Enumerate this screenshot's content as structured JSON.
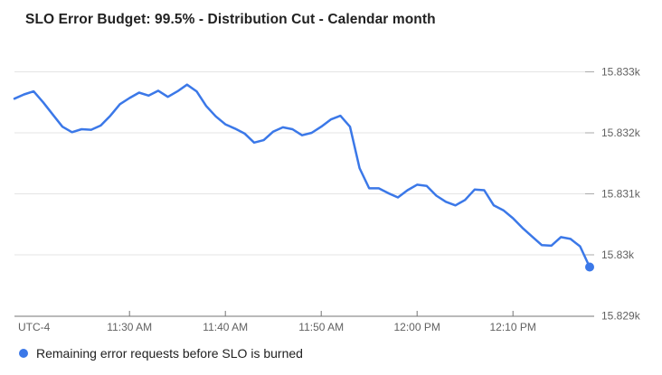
{
  "header": {
    "title": "SLO Error Budget: 99.5% - Distribution Cut - Calendar month"
  },
  "legend": {
    "label": "Remaining error requests before SLO is burned",
    "marker_color": "#3b78e8"
  },
  "axes": {
    "x": {
      "timezone_label": "UTC-4",
      "ticks": [
        {
          "label": "11:30 AM",
          "time": "11:30 AM"
        },
        {
          "label": "11:40 AM",
          "time": "11:40 AM"
        },
        {
          "label": "11:50 AM",
          "time": "11:50 AM"
        },
        {
          "label": "12:00 PM",
          "time": "12:00 PM"
        },
        {
          "label": "12:10 PM",
          "time": "12:10 PM"
        }
      ]
    },
    "y": {
      "ticks": [
        {
          "label": "15.833k",
          "value": 15833
        },
        {
          "label": "15.832k",
          "value": 15832
        },
        {
          "label": "15.831k",
          "value": 15831
        },
        {
          "label": "15.83k",
          "value": 15830
        },
        {
          "label": "15.829k",
          "value": 15829
        }
      ]
    }
  },
  "colors": {
    "line": "#3b78e8",
    "gridline": "#e4e4e4",
    "gridline_end_tick": "#aaaaaa",
    "axis_line": "#757575",
    "axis_tick": "#757575",
    "axis_label": "#616161",
    "title_text": "#212121",
    "legend_text": "#212121"
  },
  "chart_data": {
    "type": "line",
    "title": "SLO Error Budget: 99.5% - Distribution Cut - Calendar month",
    "xlabel": "UTC-4",
    "ylabel": "",
    "grid": "horizontal",
    "legend_position": "bottom-left",
    "ylim": [
      15829,
      15833.3
    ],
    "x_range": [
      "11:18 AM",
      "12:18 PM"
    ],
    "x_tick_labels": [
      "11:30 AM",
      "11:40 AM",
      "11:50 AM",
      "12:00 PM",
      "12:10 PM"
    ],
    "y_tick_labels": [
      "15.833k",
      "15.832k",
      "15.831k",
      "15.83k",
      "15.829k"
    ],
    "last_point_marker": "dot",
    "series": [
      {
        "name": "Remaining error requests before SLO is burned",
        "color": "#3b78e8",
        "points": [
          {
            "t": "11:18 AM",
            "v": 15832.56
          },
          {
            "t": "11:19 AM",
            "v": 15832.63
          },
          {
            "t": "11:20 AM",
            "v": 15832.68
          },
          {
            "t": "11:21 AM",
            "v": 15832.5
          },
          {
            "t": "11:22 AM",
            "v": 15832.3
          },
          {
            "t": "11:23 AM",
            "v": 15832.1
          },
          {
            "t": "11:24 AM",
            "v": 15832.01
          },
          {
            "t": "11:25 AM",
            "v": 15832.06
          },
          {
            "t": "11:26 AM",
            "v": 15832.05
          },
          {
            "t": "11:27 AM",
            "v": 15832.12
          },
          {
            "t": "11:28 AM",
            "v": 15832.28
          },
          {
            "t": "11:29 AM",
            "v": 15832.47
          },
          {
            "t": "11:30 AM",
            "v": 15832.57
          },
          {
            "t": "11:31 AM",
            "v": 15832.66
          },
          {
            "t": "11:32 AM",
            "v": 15832.61
          },
          {
            "t": "11:33 AM",
            "v": 15832.69
          },
          {
            "t": "11:34 AM",
            "v": 15832.59
          },
          {
            "t": "11:35 AM",
            "v": 15832.68
          },
          {
            "t": "11:36 AM",
            "v": 15832.79
          },
          {
            "t": "11:37 AM",
            "v": 15832.68
          },
          {
            "t": "11:38 AM",
            "v": 15832.44
          },
          {
            "t": "11:39 AM",
            "v": 15832.27
          },
          {
            "t": "11:40 AM",
            "v": 15832.14
          },
          {
            "t": "11:41 AM",
            "v": 15832.07
          },
          {
            "t": "11:42 AM",
            "v": 15831.99
          },
          {
            "t": "11:43 AM",
            "v": 15831.84
          },
          {
            "t": "11:44 AM",
            "v": 15831.88
          },
          {
            "t": "11:45 AM",
            "v": 15832.02
          },
          {
            "t": "11:46 AM",
            "v": 15832.09
          },
          {
            "t": "11:47 AM",
            "v": 15832.06
          },
          {
            "t": "11:48 AM",
            "v": 15831.96
          },
          {
            "t": "11:49 AM",
            "v": 15832.0
          },
          {
            "t": "11:50 AM",
            "v": 15832.1
          },
          {
            "t": "11:51 AM",
            "v": 15832.22
          },
          {
            "t": "11:52 AM",
            "v": 15832.28
          },
          {
            "t": "11:53 AM",
            "v": 15832.1
          },
          {
            "t": "11:54 AM",
            "v": 15831.42
          },
          {
            "t": "11:55 AM",
            "v": 15831.09
          },
          {
            "t": "11:56 AM",
            "v": 15831.09
          },
          {
            "t": "11:57 AM",
            "v": 15831.01
          },
          {
            "t": "11:58 AM",
            "v": 15830.94
          },
          {
            "t": "11:59 AM",
            "v": 15831.06
          },
          {
            "t": "12:00 PM",
            "v": 15831.15
          },
          {
            "t": "12:01 PM",
            "v": 15831.13
          },
          {
            "t": "12:02 PM",
            "v": 15830.97
          },
          {
            "t": "12:03 PM",
            "v": 15830.87
          },
          {
            "t": "12:04 PM",
            "v": 15830.81
          },
          {
            "t": "12:05 PM",
            "v": 15830.9
          },
          {
            "t": "12:06 PM",
            "v": 15831.07
          },
          {
            "t": "12:07 PM",
            "v": 15831.06
          },
          {
            "t": "12:08 PM",
            "v": 15830.81
          },
          {
            "t": "12:09 PM",
            "v": 15830.73
          },
          {
            "t": "12:10 PM",
            "v": 15830.6
          },
          {
            "t": "12:11 PM",
            "v": 15830.44
          },
          {
            "t": "12:12 PM",
            "v": 15830.3
          },
          {
            "t": "12:13 PM",
            "v": 15830.16
          },
          {
            "t": "12:14 PM",
            "v": 15830.15
          },
          {
            "t": "12:15 PM",
            "v": 15830.29
          },
          {
            "t": "12:16 PM",
            "v": 15830.26
          },
          {
            "t": "12:17 PM",
            "v": 15830.14
          },
          {
            "t": "12:18 PM",
            "v": 15829.8
          }
        ]
      }
    ]
  }
}
